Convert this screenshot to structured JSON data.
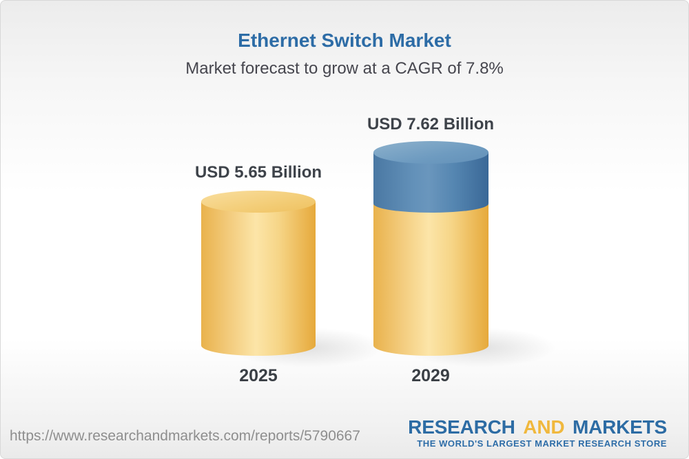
{
  "header": {
    "title": "Ethernet Switch Market",
    "subtitle": "Market forecast to grow at a CAGR of 7.8%"
  },
  "chart_data": {
    "type": "bar",
    "chart_style": "3d-cylinder",
    "categories": [
      "2025",
      "2029"
    ],
    "values": [
      5.65,
      7.62
    ],
    "unit": "USD Billion",
    "value_labels": [
      "USD 5.65 Billion",
      "USD 7.62 Billion"
    ],
    "cagr_percent": 7.8,
    "title": "Ethernet Switch Market",
    "xlabel": "",
    "ylabel": "",
    "ylim": [
      0,
      8
    ],
    "grid": false,
    "legend": "none",
    "series": [
      {
        "name": "base-value",
        "color_cap": "#f5d285",
        "color_body": "#f0c468",
        "applies_to": [
          "2025",
          "2029"
        ]
      },
      {
        "name": "growth-segment",
        "color_cap": "#7ea6c6",
        "color_body": "#537fa9",
        "applies_to": [
          "2029"
        ]
      }
    ]
  },
  "footer": {
    "url": "https://www.researchandmarkets.com/reports/5790667",
    "logo": {
      "text_research": "RESEARCH",
      "text_and": "AND",
      "text_markets": "MARKETS",
      "tagline": "THE WORLD'S LARGEST MARKET RESEARCH STORE",
      "color_blue": "#2d6ca4",
      "color_yellow": "#f0b83d"
    }
  }
}
